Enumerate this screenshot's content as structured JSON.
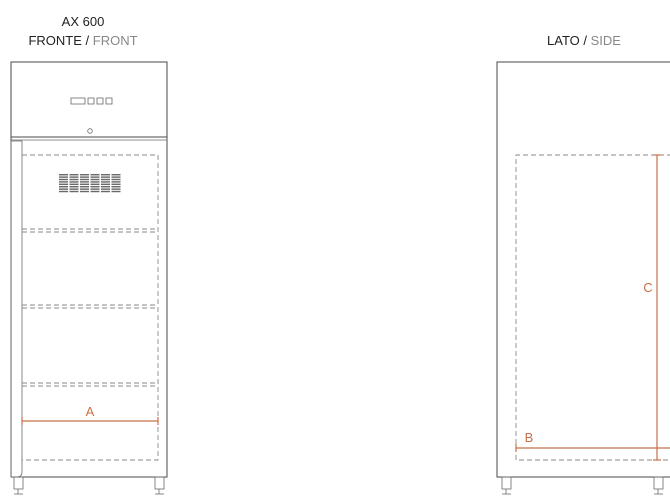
{
  "front": {
    "model": "AX 600",
    "view_label": "FRONTE",
    "separator": " / ",
    "view_label_en": "FRONT"
  },
  "side": {
    "view_label": "LATO",
    "separator": " / ",
    "view_label_en": "SIDE"
  },
  "dimensions": {
    "a": "A",
    "b": "B",
    "c": "C"
  },
  "colors": {
    "label_primary": "#222222",
    "label_secondary": "#888888",
    "dimension": "#c8704a",
    "outline": "#4a4a4a"
  }
}
